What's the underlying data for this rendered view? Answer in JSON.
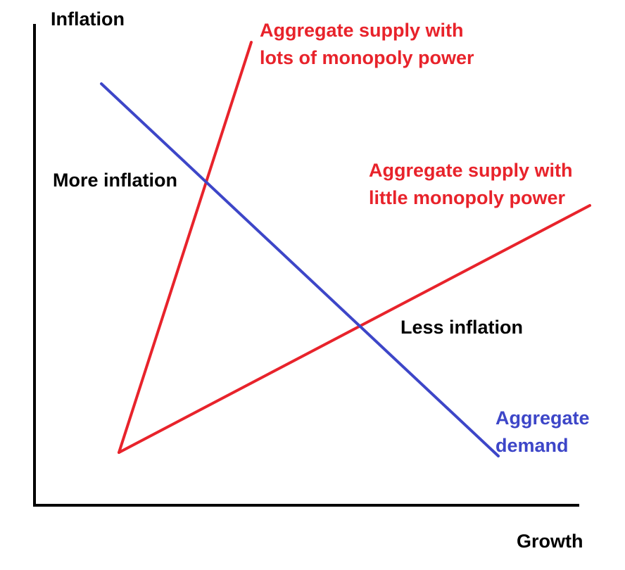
{
  "labels": {
    "y_axis": "Inflation",
    "x_axis": "Growth",
    "supply_high": [
      "Aggregate supply with",
      "lots of monopoly power"
    ],
    "supply_low": [
      "Aggregate supply with",
      "little monopoly power"
    ],
    "demand": [
      "Aggregate",
      "demand"
    ],
    "more_inflation": "More inflation",
    "less_inflation": "Less inflation"
  },
  "colors": {
    "axis": "#000000",
    "supply": "#e8232b",
    "demand": "#3d46c8",
    "text": "#000000"
  },
  "curves": [
    {
      "name": "aggregate-supply-high-monopoly",
      "color_key": "supply"
    },
    {
      "name": "aggregate-supply-low-monopoly",
      "color_key": "supply"
    },
    {
      "name": "aggregate-demand",
      "color_key": "demand"
    }
  ]
}
